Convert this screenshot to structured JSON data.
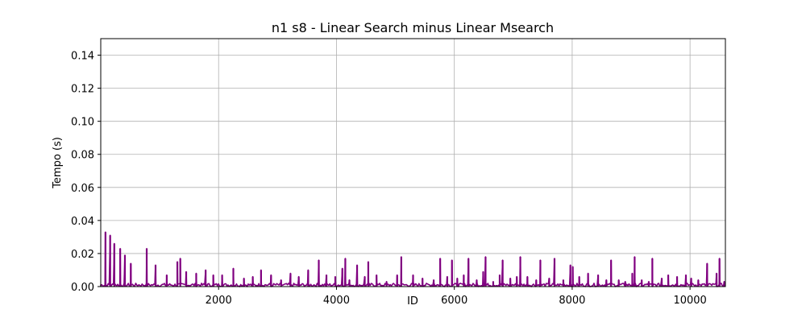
{
  "chart_data": {
    "type": "line",
    "title": "n1 s8 - Linear Search minus Linear Msearch",
    "xlabel": "ID",
    "ylabel": "Tempo (s)",
    "xlim": [
      0,
      10600
    ],
    "ylim": [
      0,
      0.15
    ],
    "grid": true,
    "x_ticks": [
      2000,
      4000,
      6000,
      8000,
      10000
    ],
    "x_tick_labels": [
      "2000",
      "4000",
      "6000",
      "8000",
      "10000"
    ],
    "y_ticks": [
      0.0,
      0.02,
      0.04,
      0.06,
      0.08,
      0.1,
      0.12,
      0.14
    ],
    "y_tick_labels": [
      "0.00",
      "0.02",
      "0.04",
      "0.06",
      "0.08",
      "0.10",
      "0.12",
      "0.14"
    ],
    "series": [
      {
        "color": "#800080",
        "spikes": [
          [
            80,
            0.033
          ],
          [
            160,
            0.031
          ],
          [
            230,
            0.026
          ],
          [
            330,
            0.023
          ],
          [
            410,
            0.019
          ],
          [
            510,
            0.014
          ],
          [
            780,
            0.023
          ],
          [
            930,
            0.013
          ],
          [
            1120,
            0.007
          ],
          [
            1300,
            0.015
          ],
          [
            1350,
            0.017
          ],
          [
            1450,
            0.009
          ],
          [
            1620,
            0.008
          ],
          [
            1780,
            0.01
          ],
          [
            1910,
            0.007
          ],
          [
            2060,
            0.007
          ],
          [
            2250,
            0.011
          ],
          [
            2430,
            0.005
          ],
          [
            2580,
            0.006
          ],
          [
            2720,
            0.01
          ],
          [
            2890,
            0.007
          ],
          [
            3060,
            0.004
          ],
          [
            3220,
            0.008
          ],
          [
            3360,
            0.006
          ],
          [
            3520,
            0.01
          ],
          [
            3700,
            0.016
          ],
          [
            3830,
            0.007
          ],
          [
            3980,
            0.006
          ],
          [
            4100,
            0.011
          ],
          [
            4150,
            0.017
          ],
          [
            4220,
            0.004
          ],
          [
            4350,
            0.013
          ],
          [
            4480,
            0.006
          ],
          [
            4540,
            0.015
          ],
          [
            4680,
            0.007
          ],
          [
            4850,
            0.003
          ],
          [
            5030,
            0.007
          ],
          [
            5100,
            0.018
          ],
          [
            5300,
            0.007
          ],
          [
            5460,
            0.005
          ],
          [
            5650,
            0.004
          ],
          [
            5760,
            0.017
          ],
          [
            5880,
            0.006
          ],
          [
            5960,
            0.016
          ],
          [
            6050,
            0.005
          ],
          [
            6160,
            0.007
          ],
          [
            6240,
            0.017
          ],
          [
            6380,
            0.004
          ],
          [
            6490,
            0.009
          ],
          [
            6530,
            0.018
          ],
          [
            6660,
            0.003
          ],
          [
            6770,
            0.007
          ],
          [
            6820,
            0.016
          ],
          [
            6950,
            0.005
          ],
          [
            7060,
            0.006
          ],
          [
            7120,
            0.018
          ],
          [
            7240,
            0.006
          ],
          [
            7390,
            0.004
          ],
          [
            7460,
            0.016
          ],
          [
            7610,
            0.005
          ],
          [
            7700,
            0.017
          ],
          [
            7850,
            0.004
          ],
          [
            7970,
            0.013
          ],
          [
            8010,
            0.012
          ],
          [
            8120,
            0.006
          ],
          [
            8270,
            0.008
          ],
          [
            8440,
            0.007
          ],
          [
            8580,
            0.004
          ],
          [
            8660,
            0.016
          ],
          [
            8790,
            0.004
          ],
          [
            8900,
            0.003
          ],
          [
            9020,
            0.008
          ],
          [
            9060,
            0.018
          ],
          [
            9180,
            0.004
          ],
          [
            9300,
            0.003
          ],
          [
            9360,
            0.017
          ],
          [
            9520,
            0.005
          ],
          [
            9630,
            0.007
          ],
          [
            9780,
            0.006
          ],
          [
            9930,
            0.007
          ],
          [
            10020,
            0.005
          ],
          [
            10140,
            0.004
          ],
          [
            10290,
            0.014
          ],
          [
            10450,
            0.008
          ],
          [
            10500,
            0.017
          ],
          [
            10580,
            0.003
          ]
        ],
        "baseline_max": 0.002
      }
    ]
  }
}
